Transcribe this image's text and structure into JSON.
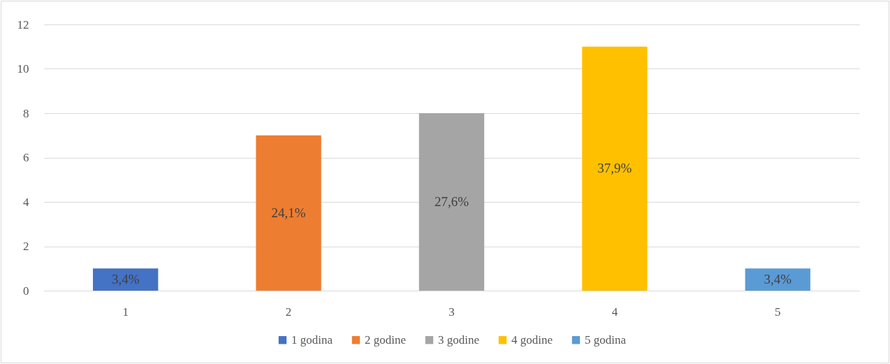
{
  "chart_data": {
    "type": "bar",
    "categories": [
      "1",
      "2",
      "3",
      "4",
      "5"
    ],
    "series": [
      {
        "name": "1 godina",
        "color": "#4472c4",
        "values": [
          1,
          null,
          null,
          null,
          null
        ]
      },
      {
        "name": "2 godine",
        "color": "#ed7d31",
        "values": [
          null,
          7,
          null,
          null,
          null
        ]
      },
      {
        "name": "3 godine",
        "color": "#a5a5a5",
        "values": [
          null,
          null,
          8,
          null,
          null
        ]
      },
      {
        "name": "4 godine",
        "color": "#ffc000",
        "values": [
          null,
          null,
          null,
          11,
          null
        ]
      },
      {
        "name": "5 godina",
        "color": "#5b9bd5",
        "values": [
          null,
          null,
          null,
          null,
          1
        ]
      }
    ],
    "annotations": [
      "3,4%",
      "24,1%",
      "27,6%",
      "37,9%",
      "3,4%"
    ],
    "ylim": [
      0,
      12
    ],
    "yticks": [
      0,
      2,
      4,
      6,
      8,
      10,
      12
    ],
    "grid": "y",
    "legend": "bottom"
  }
}
